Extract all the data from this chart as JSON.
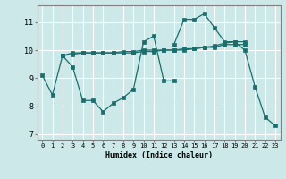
{
  "xlabel": "Humidex (Indice chaleur)",
  "bg_color": "#cce8e8",
  "grid_color": "#ffffff",
  "line_color": "#1a6e6e",
  "xlim": [
    -0.5,
    23.5
  ],
  "ylim": [
    6.8,
    11.6
  ],
  "xticks": [
    0,
    1,
    2,
    3,
    4,
    5,
    6,
    7,
    8,
    9,
    10,
    11,
    12,
    13,
    14,
    15,
    16,
    17,
    18,
    19,
    20,
    21,
    22,
    23
  ],
  "yticks": [
    7,
    8,
    9,
    10,
    11
  ],
  "series": [
    {
      "x": [
        0,
        1,
        2,
        3,
        4,
        5,
        6,
        7,
        8,
        9,
        10,
        11,
        12,
        13
      ],
      "y": [
        9.1,
        8.4,
        9.8,
        9.4,
        8.2,
        8.2,
        7.8,
        8.1,
        8.3,
        8.6,
        10.3,
        10.5,
        8.9,
        8.9
      ]
    },
    {
      "x": [
        13,
        14,
        15,
        16,
        17,
        18,
        19,
        20,
        21,
        22,
        23
      ],
      "y": [
        10.2,
        11.1,
        11.1,
        11.3,
        10.8,
        10.3,
        10.3,
        10.0,
        8.7,
        7.6,
        7.3
      ]
    },
    {
      "x": [
        2,
        3,
        4,
        5,
        6,
        7,
        8,
        9,
        10,
        11,
        12,
        13,
        14,
        15,
        16,
        17,
        18,
        19,
        20
      ],
      "y": [
        9.8,
        9.9,
        9.9,
        9.9,
        9.9,
        9.9,
        9.95,
        9.95,
        10.0,
        10.0,
        10.0,
        10.0,
        10.0,
        10.05,
        10.1,
        10.1,
        10.2,
        10.2,
        10.2
      ]
    },
    {
      "x": [
        2,
        3,
        4,
        5,
        6,
        7,
        8,
        9,
        10,
        11,
        12,
        13,
        14,
        15,
        16,
        17,
        18,
        19,
        20
      ],
      "y": [
        9.8,
        9.85,
        9.9,
        9.9,
        9.9,
        9.9,
        9.9,
        9.9,
        9.95,
        9.95,
        10.0,
        10.0,
        10.05,
        10.05,
        10.1,
        10.15,
        10.25,
        10.3,
        10.3
      ]
    }
  ]
}
